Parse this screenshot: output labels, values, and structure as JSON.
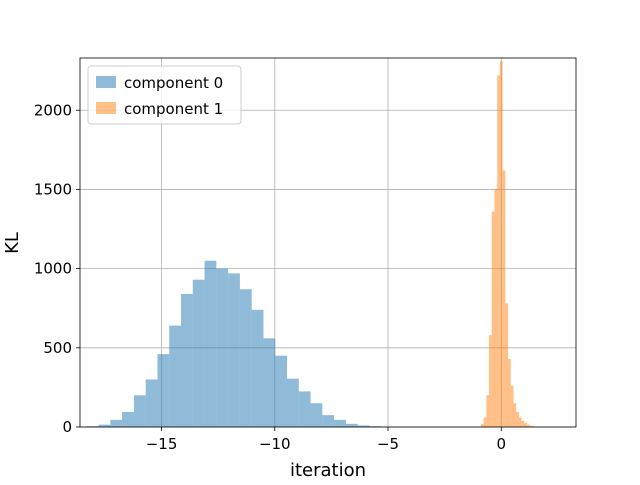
{
  "chart_data": {
    "type": "bar",
    "subtype": "histogram",
    "xlabel": "iteration",
    "ylabel": "KL",
    "xlim": [
      -18.6,
      3.3
    ],
    "ylim": [
      0,
      2330
    ],
    "xticks": [
      -15,
      -10,
      -5,
      0
    ],
    "xtick_labels": [
      "−15",
      "−10",
      "−5",
      "0"
    ],
    "yticks": [
      0,
      500,
      1000,
      1500,
      2000
    ],
    "ytick_labels": [
      "0",
      "500",
      "1000",
      "1500",
      "2000"
    ],
    "grid": true,
    "legend_position": "top-left",
    "series": [
      {
        "name": "component 0",
        "color": "#1f77b4",
        "opacity": 0.5,
        "bin_edges": [
          -18.3,
          -17.78,
          -17.26,
          -16.74,
          -16.22,
          -15.7,
          -15.18,
          -14.66,
          -14.14,
          -13.62,
          -13.1,
          -12.58,
          -12.06,
          -11.54,
          -11.02,
          -10.5,
          -9.98,
          -9.46,
          -8.94,
          -8.42,
          -7.9,
          -7.38,
          -6.86,
          -6.34,
          -5.82,
          -5.3
        ],
        "counts": [
          5,
          15,
          45,
          95,
          200,
          300,
          460,
          640,
          840,
          930,
          1050,
          1000,
          970,
          870,
          740,
          560,
          450,
          305,
          225,
          150,
          75,
          45,
          20,
          10,
          5
        ]
      },
      {
        "name": "component 1",
        "color": "#ff7f0e",
        "opacity": 0.5,
        "bin_edges": [
          -0.9,
          -0.78,
          -0.66,
          -0.54,
          -0.42,
          -0.3,
          -0.18,
          -0.06,
          0.06,
          0.18,
          0.3,
          0.42,
          0.54,
          0.66,
          0.78,
          0.9,
          1.02,
          1.14,
          1.26,
          1.38,
          1.5
        ],
        "counts": [
          20,
          60,
          200,
          580,
          1360,
          1500,
          2220,
          2310,
          1620,
          780,
          430,
          260,
          150,
          95,
          60,
          40,
          25,
          15,
          8,
          4
        ]
      }
    ]
  }
}
